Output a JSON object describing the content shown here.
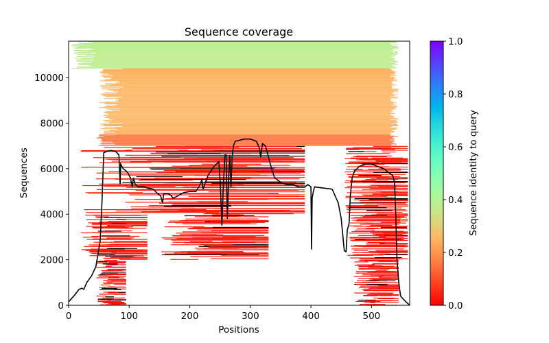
{
  "chart_data": {
    "type": "heatmap",
    "title": "Sequence coverage",
    "xlabel": "Positions",
    "ylabel": "Sequences",
    "xlim": [
      0,
      563
    ],
    "ylim": [
      0,
      11600
    ],
    "xticks": [
      0,
      100,
      200,
      300,
      400,
      500
    ],
    "yticks": [
      0,
      2000,
      4000,
      6000,
      8000,
      10000
    ],
    "colorbar": {
      "label": "Sequence identity to query",
      "colormap": "rainbow_r",
      "range": [
        0,
        1
      ],
      "ticks": [
        "0.0",
        "0.2",
        "0.4",
        "0.6",
        "0.8",
        "1.0"
      ]
    },
    "identity_bands": [
      {
        "seq_range": [
          10400,
          11600
        ],
        "identity": 0.38,
        "pos_range": [
          5,
          545
        ]
      },
      {
        "seq_range": [
          7500,
          10400
        ],
        "identity": 0.25,
        "pos_range": [
          50,
          545
        ]
      },
      {
        "seq_range": [
          7000,
          7500
        ],
        "identity": 0.15,
        "pos_range": [
          45,
          545
        ]
      }
    ],
    "low_identity_regions": [
      {
        "seq_range": [
          0,
          2000
        ],
        "pos_range": [
          45,
          95
        ],
        "identity": 0.02
      },
      {
        "seq_range": [
          0,
          2000
        ],
        "pos_range": [
          470,
          545
        ],
        "identity": 0.02
      },
      {
        "seq_range": [
          2000,
          4000
        ],
        "pos_range": [
          20,
          130
        ],
        "identity": 0.03
      },
      {
        "seq_range": [
          2000,
          4000
        ],
        "pos_range": [
          150,
          330
        ],
        "identity": 0.03
      },
      {
        "seq_range": [
          2000,
          4000
        ],
        "pos_range": [
          460,
          560
        ],
        "identity": 0.03
      },
      {
        "seq_range": [
          4000,
          7000
        ],
        "pos_range": [
          20,
          390
        ],
        "identity": 0.04
      },
      {
        "seq_range": [
          4000,
          7000
        ],
        "pos_range": [
          455,
          560
        ],
        "identity": 0.04
      }
    ],
    "coverage_line": {
      "x": [
        0,
        10,
        17,
        22,
        25,
        30,
        38,
        45,
        50,
        52,
        55,
        58,
        62,
        70,
        78,
        83,
        85,
        86,
        90,
        95,
        98,
        102,
        105,
        107,
        110,
        115,
        125,
        130,
        140,
        145,
        152,
        155,
        157,
        165,
        170,
        172,
        180,
        190,
        200,
        210,
        215,
        220,
        222,
        230,
        240,
        248,
        250,
        252,
        253,
        255,
        258,
        260,
        262,
        264,
        266,
        268,
        270,
        272,
        275,
        290,
        300,
        310,
        315,
        317,
        320,
        325,
        330,
        335,
        340,
        350,
        360,
        370,
        380,
        390,
        395,
        400,
        401,
        402,
        404,
        406,
        420,
        435,
        440,
        445,
        450,
        455,
        458,
        460,
        463,
        465,
        468,
        472,
        480,
        490,
        500,
        510,
        520,
        530,
        535,
        538,
        540,
        542,
        545,
        548,
        555,
        563
      ],
      "y": [
        150,
        450,
        700,
        750,
        700,
        1000,
        1300,
        1700,
        2500,
        2800,
        4500,
        6700,
        6750,
        6800,
        6750,
        6600,
        5300,
        6200,
        6000,
        5900,
        5800,
        5600,
        5200,
        5600,
        5300,
        5200,
        5200,
        5150,
        5100,
        4950,
        4800,
        4500,
        4900,
        4900,
        4800,
        4700,
        4800,
        4950,
        5000,
        5000,
        5200,
        5500,
        5100,
        5700,
        6100,
        6300,
        5500,
        4200,
        3500,
        5000,
        6600,
        6600,
        3800,
        5500,
        6600,
        5200,
        6500,
        7000,
        7200,
        7300,
        7300,
        7200,
        6900,
        6500,
        7100,
        7000,
        6500,
        6000,
        5600,
        5400,
        5300,
        5300,
        5200,
        5200,
        5300,
        5200,
        2450,
        4700,
        5000,
        5200,
        5150,
        5100,
        4800,
        4500,
        3800,
        2400,
        2350,
        3300,
        3600,
        4800,
        5600,
        5900,
        6100,
        6200,
        6200,
        6100,
        6000,
        5800,
        5700,
        5400,
        4000,
        2000,
        1000,
        400,
        200,
        0
      ]
    }
  }
}
